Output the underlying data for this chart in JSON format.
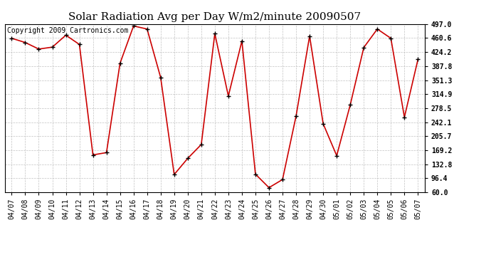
{
  "title": "Solar Radiation Avg per Day W/m2/minute 20090507",
  "copyright": "Copyright 2009 Cartronics.com",
  "dates": [
    "04/07",
    "04/08",
    "04/09",
    "04/10",
    "04/11",
    "04/12",
    "04/13",
    "04/14",
    "04/15",
    "04/16",
    "04/17",
    "04/18",
    "04/19",
    "04/20",
    "04/21",
    "04/22",
    "04/23",
    "04/24",
    "04/25",
    "04/26",
    "04/27",
    "04/28",
    "04/29",
    "04/30",
    "05/01",
    "05/02",
    "05/03",
    "05/04",
    "05/05",
    "05/06",
    "05/07"
  ],
  "values": [
    460.0,
    449.0,
    432.0,
    437.0,
    468.0,
    444.0,
    157.0,
    163.0,
    395.0,
    492.0,
    484.0,
    358.0,
    106.0,
    148.0,
    184.0,
    472.0,
    310.0,
    453.0,
    107.0,
    72.0,
    93.0,
    258.0,
    466.0,
    238.0,
    155.0,
    287.0,
    436.0,
    484.0,
    460.0,
    255.0,
    405.0
  ],
  "y_ticks": [
    60.0,
    96.4,
    132.8,
    169.2,
    205.7,
    242.1,
    278.5,
    314.9,
    351.3,
    387.8,
    424.2,
    460.6,
    497.0
  ],
  "line_color": "#cc0000",
  "marker_color": "#000000",
  "bg_color": "#ffffff",
  "grid_color": "#bbbbbb",
  "title_fontsize": 11,
  "copyright_fontsize": 7,
  "tick_fontsize": 7,
  "ylim": [
    60.0,
    497.0
  ],
  "fig_width": 6.9,
  "fig_height": 3.75,
  "dpi": 100
}
